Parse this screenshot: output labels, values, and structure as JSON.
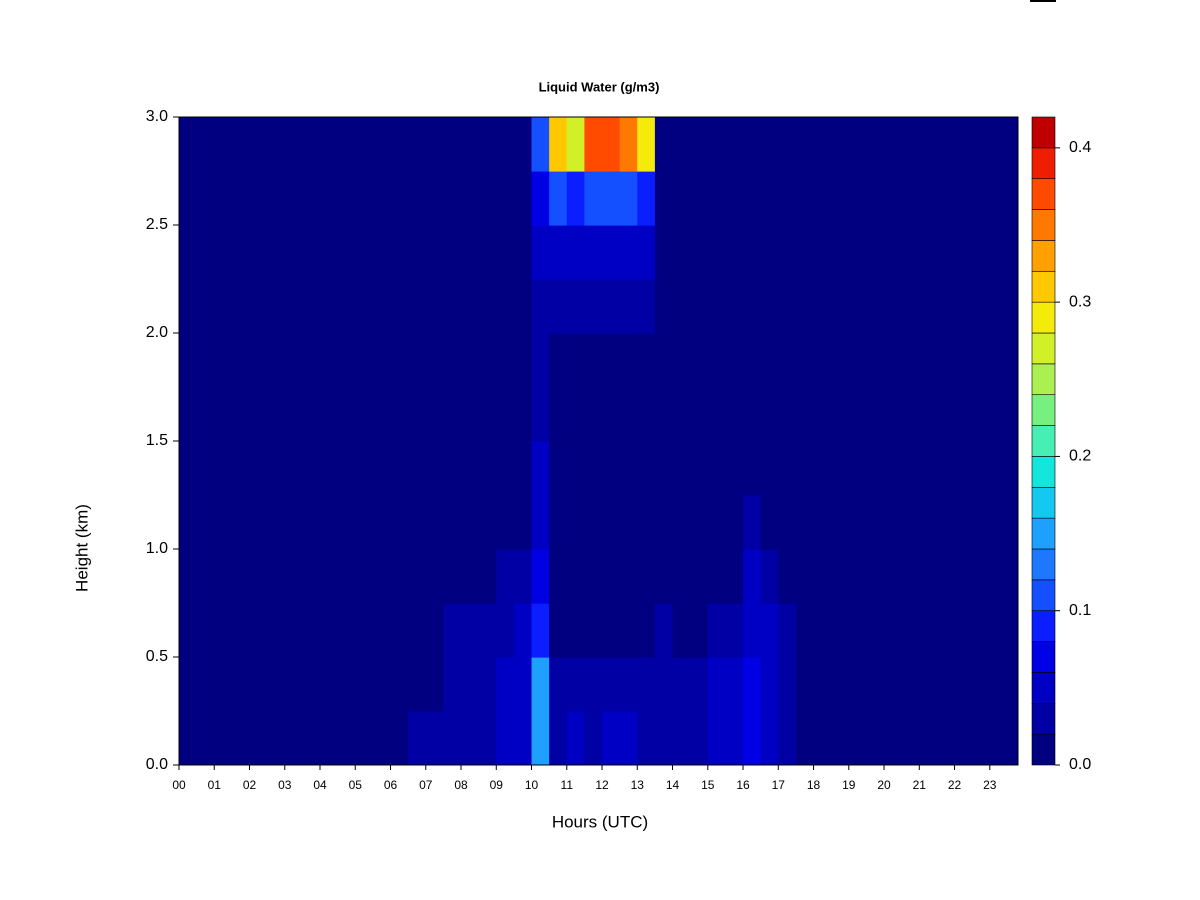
{
  "chart_data": {
    "type": "heatmap",
    "title": "Liquid Water (g/m3)",
    "xlabel": "Hours (UTC)",
    "ylabel": "Height (km)",
    "xlim": [
      0,
      23.8
    ],
    "ylim": [
      0,
      3
    ],
    "xticks": [
      {
        "value": 0,
        "label": "00"
      },
      {
        "value": 1,
        "label": "01"
      },
      {
        "value": 2,
        "label": "02"
      },
      {
        "value": 3,
        "label": "03"
      },
      {
        "value": 4,
        "label": "04"
      },
      {
        "value": 5,
        "label": "05"
      },
      {
        "value": 6,
        "label": "06"
      },
      {
        "value": 7,
        "label": "07"
      },
      {
        "value": 8,
        "label": "08"
      },
      {
        "value": 9,
        "label": "09"
      },
      {
        "value": 10,
        "label": "10"
      },
      {
        "value": 11,
        "label": "11"
      },
      {
        "value": 12,
        "label": "12"
      },
      {
        "value": 13,
        "label": "13"
      },
      {
        "value": 14,
        "label": "14"
      },
      {
        "value": 15,
        "label": "15"
      },
      {
        "value": 16,
        "label": "16"
      },
      {
        "value": 17,
        "label": "17"
      },
      {
        "value": 18,
        "label": "18"
      },
      {
        "value": 19,
        "label": "19"
      },
      {
        "value": 20,
        "label": "20"
      },
      {
        "value": 21,
        "label": "21"
      },
      {
        "value": 22,
        "label": "22"
      },
      {
        "value": 23,
        "label": "23"
      }
    ],
    "yticks": [
      {
        "value": 0,
        "label": "0.0"
      },
      0.5,
      {
        "value": 1,
        "label": "1.0"
      },
      1.5,
      {
        "value": 2,
        "label": "2.0"
      },
      2.5,
      {
        "value": 3,
        "label": "3.0"
      }
    ],
    "x": [
      0.25,
      0.75,
      1.25,
      1.75,
      2.25,
      2.75,
      3.25,
      3.75,
      4.25,
      4.75,
      5.25,
      5.75,
      6.25,
      6.75,
      7.25,
      7.75,
      8.25,
      8.75,
      9.25,
      9.75,
      10.25,
      10.75,
      11.25,
      11.75,
      12.25,
      12.75,
      13.25,
      13.75,
      14.25,
      14.75,
      15.25,
      15.75,
      16.25,
      16.75,
      17.25,
      17.75,
      18.25,
      18.75,
      19.25,
      19.75,
      20.25,
      20.75,
      21.25,
      21.75,
      22.25,
      22.75,
      23.25,
      23.75
    ],
    "y": [
      0.125,
      0.375,
      0.625,
      0.875,
      1.125,
      1.375,
      1.625,
      1.875,
      2.125,
      2.375,
      2.625,
      2.875
    ],
    "z": [
      [
        0,
        0,
        0,
        0,
        0,
        0,
        0,
        0,
        0,
        0,
        0,
        0,
        0,
        0.02,
        0.02,
        0.02,
        0.02,
        0.02,
        0.04,
        0.04,
        0.14,
        0.02,
        0.04,
        0.02,
        0.04,
        0.04,
        0.02,
        0.02,
        0.02,
        0.02,
        0.04,
        0.04,
        0.06,
        0.04,
        0.02,
        0,
        0,
        0,
        0,
        0,
        0,
        0,
        0,
        0,
        0,
        0,
        0,
        0
      ],
      [
        0,
        0,
        0,
        0,
        0,
        0,
        0,
        0,
        0,
        0,
        0,
        0,
        0,
        0,
        0,
        0.02,
        0.02,
        0.02,
        0.04,
        0.04,
        0.14,
        0.02,
        0.02,
        0.02,
        0.02,
        0.02,
        0.02,
        0.02,
        0.02,
        0.02,
        0.04,
        0.04,
        0.06,
        0.04,
        0.02,
        0,
        0,
        0,
        0,
        0,
        0,
        0,
        0,
        0,
        0,
        0,
        0,
        0
      ],
      [
        0,
        0,
        0,
        0,
        0,
        0,
        0,
        0,
        0,
        0,
        0,
        0,
        0,
        0,
        0,
        0.02,
        0.02,
        0.02,
        0.02,
        0.04,
        0.08,
        0,
        0,
        0,
        0,
        0,
        0,
        0.02,
        0,
        0,
        0.02,
        0.02,
        0.04,
        0.04,
        0.02,
        0,
        0,
        0,
        0,
        0,
        0,
        0,
        0,
        0,
        0,
        0,
        0,
        0
      ],
      [
        0,
        0,
        0,
        0,
        0,
        0,
        0,
        0,
        0,
        0,
        0,
        0,
        0,
        0,
        0,
        0,
        0,
        0,
        0.02,
        0.02,
        0.06,
        0,
        0,
        0,
        0,
        0,
        0,
        0,
        0,
        0,
        0,
        0,
        0.04,
        0.02,
        0,
        0,
        0,
        0,
        0,
        0,
        0,
        0,
        0,
        0,
        0,
        0,
        0,
        0
      ],
      [
        0,
        0,
        0,
        0,
        0,
        0,
        0,
        0,
        0,
        0,
        0,
        0,
        0,
        0,
        0,
        0,
        0,
        0,
        0,
        0,
        0.04,
        0,
        0,
        0,
        0,
        0,
        0,
        0,
        0,
        0,
        0,
        0,
        0.02,
        0,
        0,
        0,
        0,
        0,
        0,
        0,
        0,
        0,
        0,
        0,
        0,
        0,
        0,
        0
      ],
      [
        0,
        0,
        0,
        0,
        0,
        0,
        0,
        0,
        0,
        0,
        0,
        0,
        0,
        0,
        0,
        0,
        0,
        0,
        0,
        0,
        0.04,
        0,
        0,
        0,
        0,
        0,
        0,
        0,
        0,
        0,
        0,
        0,
        0,
        0,
        0,
        0,
        0,
        0,
        0,
        0,
        0,
        0,
        0,
        0,
        0,
        0,
        0,
        0
      ],
      [
        0,
        0,
        0,
        0,
        0,
        0,
        0,
        0,
        0,
        0,
        0,
        0,
        0,
        0,
        0,
        0,
        0,
        0,
        0,
        0,
        0.02,
        0,
        0,
        0,
        0,
        0,
        0,
        0,
        0,
        0,
        0,
        0,
        0,
        0,
        0,
        0,
        0,
        0,
        0,
        0,
        0,
        0,
        0,
        0,
        0,
        0,
        0,
        0
      ],
      [
        0,
        0,
        0,
        0,
        0,
        0,
        0,
        0,
        0,
        0,
        0,
        0,
        0,
        0,
        0,
        0,
        0,
        0,
        0,
        0,
        0.02,
        0,
        0,
        0,
        0,
        0,
        0,
        0,
        0,
        0,
        0,
        0,
        0,
        0,
        0,
        0,
        0,
        0,
        0,
        0,
        0,
        0,
        0,
        0,
        0,
        0,
        0,
        0
      ],
      [
        0,
        0,
        0,
        0,
        0,
        0,
        0,
        0,
        0,
        0,
        0,
        0,
        0,
        0,
        0,
        0,
        0,
        0,
        0,
        0,
        0.02,
        0.02,
        0.02,
        0.02,
        0.02,
        0.02,
        0.02,
        0,
        0,
        0,
        0,
        0,
        0,
        0,
        0,
        0,
        0,
        0,
        0,
        0,
        0,
        0,
        0,
        0,
        0,
        0,
        0,
        0
      ],
      [
        0,
        0,
        0,
        0,
        0,
        0,
        0,
        0,
        0,
        0,
        0,
        0,
        0,
        0,
        0,
        0,
        0,
        0,
        0,
        0,
        0.04,
        0.04,
        0.04,
        0.04,
        0.04,
        0.04,
        0.04,
        0,
        0,
        0,
        0,
        0,
        0,
        0,
        0,
        0,
        0,
        0,
        0,
        0,
        0,
        0,
        0,
        0,
        0,
        0,
        0,
        0
      ],
      [
        0,
        0,
        0,
        0,
        0,
        0,
        0,
        0,
        0,
        0,
        0,
        0,
        0,
        0,
        0,
        0,
        0,
        0,
        0,
        0,
        0.06,
        0.1,
        0.08,
        0.1,
        0.1,
        0.1,
        0.08,
        0,
        0,
        0,
        0,
        0,
        0,
        0,
        0,
        0,
        0,
        0,
        0,
        0,
        0,
        0,
        0,
        0,
        0,
        0,
        0,
        0
      ],
      [
        0,
        0,
        0,
        0,
        0,
        0,
        0,
        0,
        0,
        0,
        0,
        0,
        0,
        0,
        0,
        0,
        0,
        0,
        0,
        0,
        0.1,
        0.3,
        0.26,
        0.36,
        0.36,
        0.34,
        0.28,
        0,
        0,
        0,
        0,
        0,
        0,
        0,
        0,
        0,
        0,
        0,
        0,
        0,
        0,
        0,
        0,
        0,
        0,
        0,
        0,
        0
      ]
    ],
    "colorbar": {
      "levels": [
        0,
        0.02,
        0.04,
        0.06,
        0.08,
        0.1,
        0.12,
        0.14,
        0.16,
        0.18,
        0.2,
        0.22,
        0.24,
        0.26,
        0.28,
        0.3,
        0.32,
        0.34,
        0.36,
        0.38,
        0.4,
        0.42
      ],
      "colors": [
        "#000080",
        "#0000a4",
        "#0000c4",
        "#0000e4",
        "#0a1eff",
        "#1450ff",
        "#1e78ff",
        "#1ea0ff",
        "#14c8f0",
        "#14e6dc",
        "#46f0b4",
        "#78f080",
        "#aaf050",
        "#d2f028",
        "#f5eb0a",
        "#ffc800",
        "#ffa000",
        "#ff7800",
        "#ff4b00",
        "#f01e00",
        "#c00000"
      ],
      "ticks": [
        {
          "value": 0,
          "label": "0.0"
        },
        0.1,
        0.2,
        0.3,
        0.4
      ]
    }
  }
}
